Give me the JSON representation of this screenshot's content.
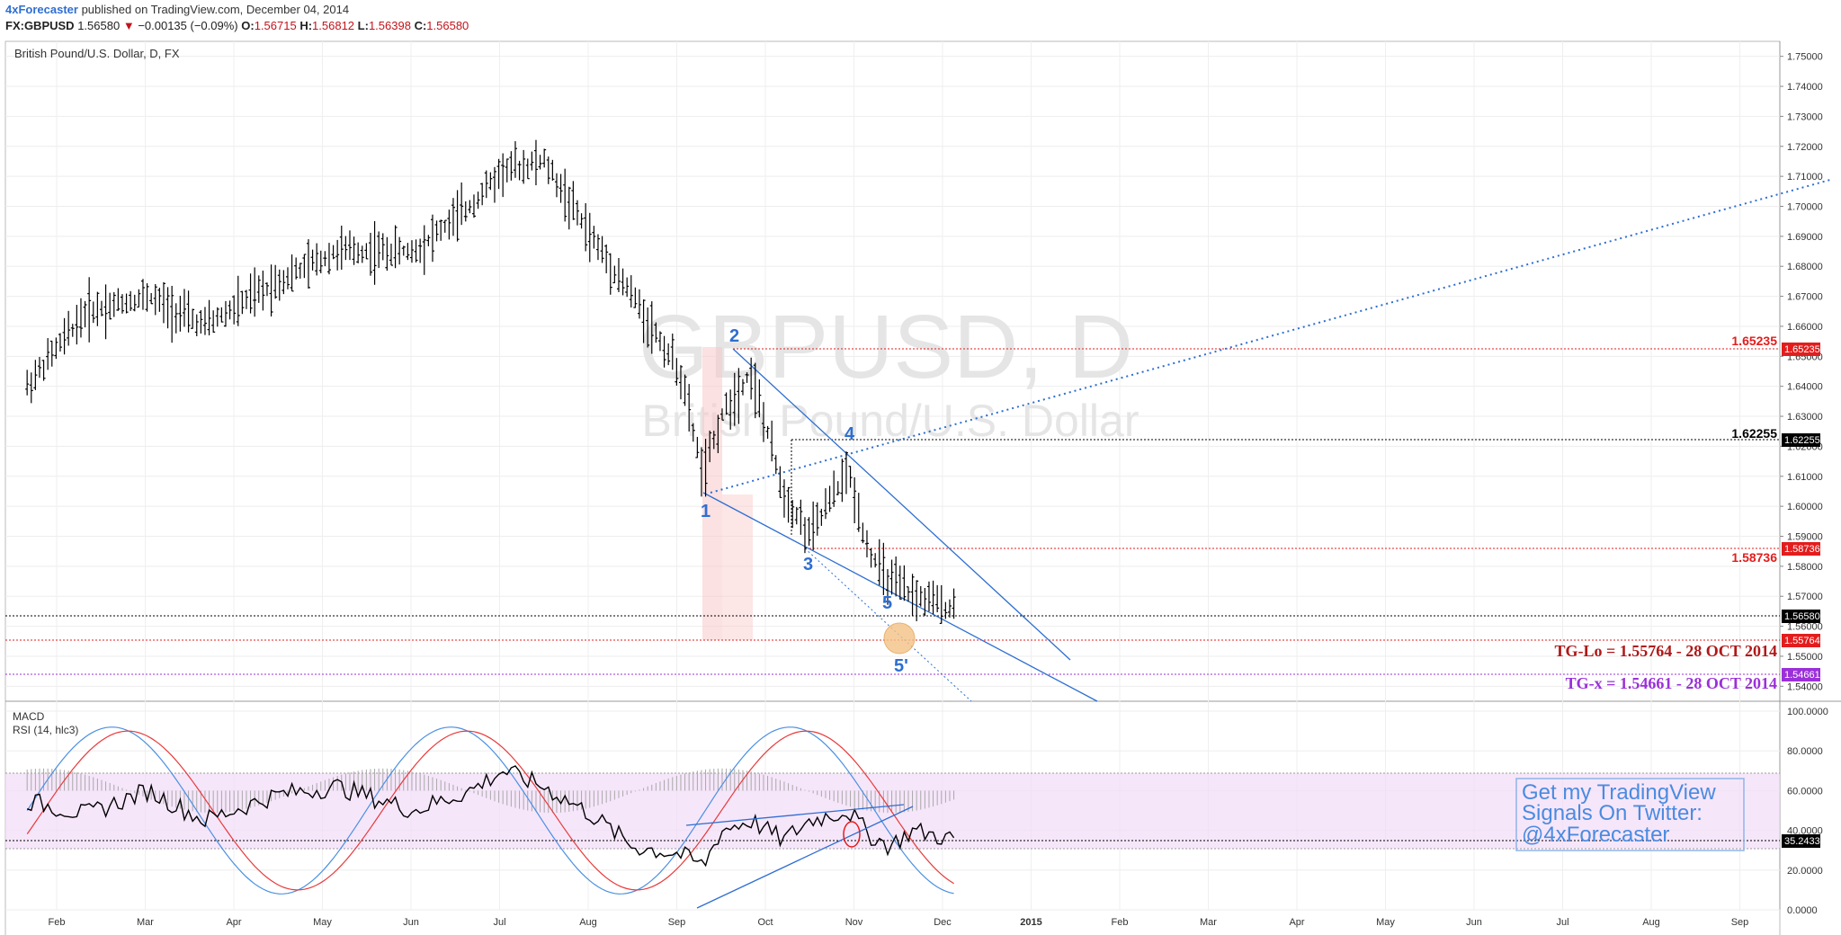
{
  "header": {
    "author": "4xForecaster",
    "published": "published on TradingView.com, December 04, 2014",
    "symbol": "FX:GBPUSD",
    "last": "1.56580",
    "arrow": "▼",
    "change": "−0.00135 (−0.09%)",
    "o_label": "O:",
    "o": "1.56715",
    "h_label": "H:",
    "h": "1.56812",
    "l_label": "L:",
    "l": "1.56398",
    "c_label": "C:",
    "c": "1.56580"
  },
  "main_pane": {
    "title": "British Pound/U.S. Dollar, D, FX",
    "watermark_symbol": "GBPUSD, D",
    "watermark_name": "British Pound/U.S. Dollar",
    "wave_labels": [
      "1",
      "2",
      "3",
      "4",
      "5",
      "5'"
    ],
    "level_labels": [
      {
        "text": "1.65235",
        "color": "#e31d1d"
      },
      {
        "text": "1.62255",
        "color": "#000000"
      },
      {
        "text": "1.58736",
        "color": "#e31d1d"
      }
    ],
    "target_labels": [
      {
        "text": "TG-Lo = 1.55764 - 28 OCT 2014",
        "color": "#b01818"
      },
      {
        "text": "TG-x = 1.54661 - 28 OCT 2014",
        "color": "#9b30d9"
      }
    ],
    "badges": [
      {
        "text": "1.65235",
        "bg": "#e31d1d",
        "fg": "#ffffff"
      },
      {
        "text": "1.62255",
        "bg": "#000000",
        "fg": "#ffffff"
      },
      {
        "text": "1.58736",
        "bg": "#e31d1d",
        "fg": "#ffffff"
      },
      {
        "text": "1.56580",
        "bg": "#000000",
        "fg": "#ffffff"
      },
      {
        "text": "1.55764",
        "bg": "#e31d1d",
        "fg": "#ffffff"
      },
      {
        "text": "1.54661",
        "bg": "#9b30d9",
        "fg": "#ffffff"
      }
    ]
  },
  "lower_pane": {
    "label_macd": "MACD",
    "label_rsi": "RSI (14, hlc3)",
    "badge": {
      "text": "35.2433",
      "bg": "#000000",
      "fg": "#ffffff"
    },
    "promo": [
      "Get my TradingView",
      "Signals On Twitter:",
      "@4xForecaster"
    ]
  },
  "colors": {
    "bull_bar": "#000000",
    "wave_label": "#2e6ed1",
    "trend_line": "#2e6ed1",
    "rsi_band": "#f2dcf8",
    "macd_fast": "#4a90e2",
    "macd_slow": "#e83a3a",
    "histogram": "#a8a8a8",
    "circle": "#f5c386"
  },
  "chart_data": [
    {
      "type": "line",
      "subtype": "ohlc-bars",
      "title": "British Pound/U.S. Dollar, D, FX",
      "x_ticks": [
        "Feb",
        "Mar",
        "Apr",
        "May",
        "Jun",
        "Jul",
        "Aug",
        "Sep",
        "Oct",
        "Nov",
        "Dec",
        "2015",
        "Feb",
        "Mar",
        "Apr",
        "May",
        "Jun",
        "Jul",
        "Aug",
        "Sep"
      ],
      "y_ticks": [
        "1.75000",
        "1.74000",
        "1.73000",
        "1.72000",
        "1.71000",
        "1.70000",
        "1.69000",
        "1.68000",
        "1.67000",
        "1.66000",
        "1.65000",
        "1.64000",
        "1.63000",
        "1.62000",
        "1.61000",
        "1.60000",
        "1.59000",
        "1.58000",
        "1.57000",
        "1.56000",
        "1.55000",
        "1.54000"
      ],
      "ylim": [
        1.535,
        1.755
      ],
      "series": [
        {
          "x": [
            "2014-01-20",
            "2014-02-10",
            "2014-03-01",
            "2014-03-20",
            "2014-04-15",
            "2014-05-05",
            "2014-06-01",
            "2014-06-20",
            "2014-07-01",
            "2014-07-15",
            "2014-08-01",
            "2014-08-15",
            "2014-09-01",
            "2014-09-09",
            "2014-09-15",
            "2014-09-25",
            "2014-10-06",
            "2014-10-15",
            "2014-10-28",
            "2014-11-05",
            "2014-11-12",
            "2014-11-20",
            "2014-12-04"
          ],
          "values": [
            1.64,
            1.665,
            1.67,
            1.66,
            1.675,
            1.685,
            1.685,
            1.7,
            1.712,
            1.715,
            1.69,
            1.67,
            1.645,
            1.61,
            1.63,
            1.645,
            1.605,
            1.59,
            1.612,
            1.585,
            1.575,
            1.57,
            1.5658
          ]
        }
      ],
      "levels": [
        1.65235,
        1.62255,
        1.58736,
        1.5658,
        1.55764,
        1.54661
      ]
    },
    {
      "type": "line",
      "title": "MACD / RSI (14, hlc3)",
      "y_ticks": [
        "100.0000",
        "80.0000",
        "60.0000",
        "40.0000",
        "20.0000",
        "0.0000"
      ],
      "ylim": [
        0,
        105
      ],
      "band": [
        30,
        70
      ],
      "series": [
        {
          "x": [
            "2014-01-20",
            "2014-02-10",
            "2014-03-01",
            "2014-03-20",
            "2014-04-15",
            "2014-05-05",
            "2014-06-01",
            "2014-06-20",
            "2014-07-01",
            "2014-07-15",
            "2014-08-01",
            "2014-08-15",
            "2014-09-01",
            "2014-09-09",
            "2014-09-15",
            "2014-09-25",
            "2014-10-06",
            "2014-10-15",
            "2014-10-28",
            "2014-11-05",
            "2014-11-12",
            "2014-11-20",
            "2014-12-04"
          ],
          "values": [
            55,
            48,
            60,
            45,
            58,
            62,
            50,
            60,
            70,
            62,
            48,
            32,
            28,
            22,
            40,
            45,
            35,
            45,
            50,
            38,
            32,
            40,
            35.2433
          ]
        }
      ]
    }
  ]
}
